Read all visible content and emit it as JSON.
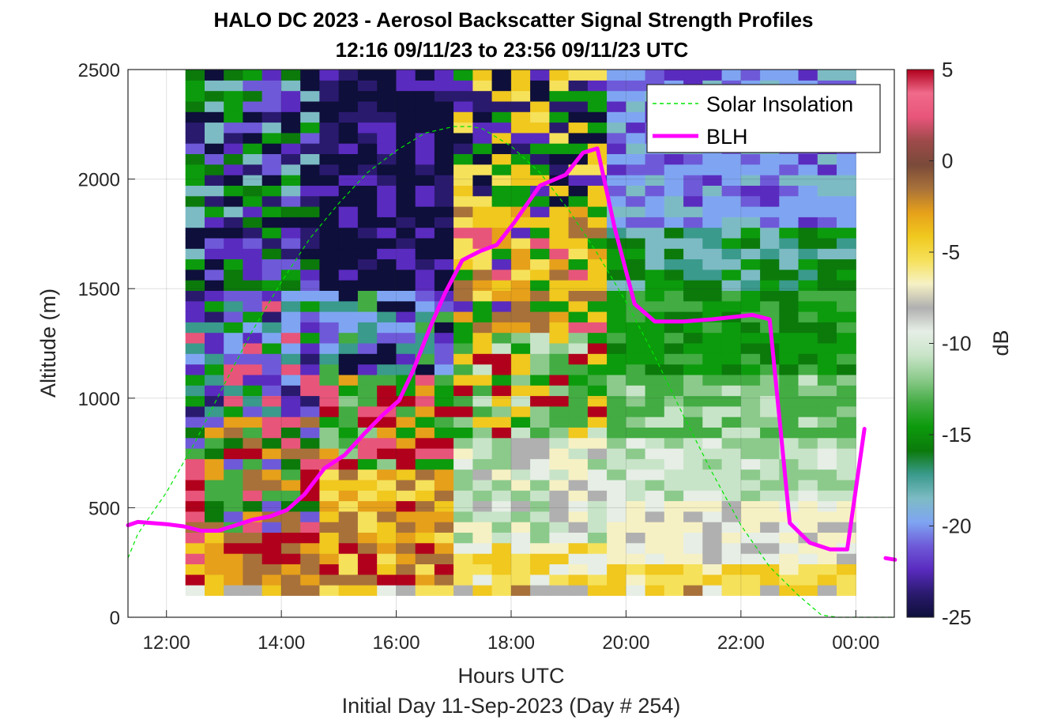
{
  "chart_data": {
    "type": "heatmap",
    "title": "HALO DC 2023 - Aerosol Backscatter Signal Strength Profiles",
    "subtitle": "12:16 09/11/23 to 23:56 09/11/23  UTC",
    "xlabel": "Hours UTC",
    "footer": "Initial Day 11-Sep-2023 (Day # 254)",
    "ylabel": "Altitude (m)",
    "colorbar_label": "dB",
    "x_ticks": [
      "12:00",
      "14:00",
      "16:00",
      "18:00",
      "20:00",
      "22:00",
      "00:00"
    ],
    "x_tick_hours": [
      12,
      14,
      16,
      18,
      20,
      22,
      24
    ],
    "xlim_hours": [
      11.33,
      24.67
    ],
    "y_ticks": [
      "0",
      "500",
      "1000",
      "1500",
      "2000",
      "2500"
    ],
    "ylim": [
      0,
      2500
    ],
    "colorbar_ticks": [
      "5",
      "0",
      "-5",
      "-10",
      "-15",
      "-20",
      "-25"
    ],
    "clim": [
      -25,
      5
    ],
    "colormap": [
      "#0e0f3a",
      "#2a1a6e",
      "#5a2bbf",
      "#6e5ad8",
      "#7fa5f2",
      "#7dbbc4",
      "#3a9a8c",
      "#0b7a0b",
      "#0c9b0c",
      "#43ac43",
      "#8cca8c",
      "#c8e4c8",
      "#e6eee6",
      "#b0b0b0",
      "#f6f1c4",
      "#f6e15a",
      "#f0c81e",
      "#e6a01a",
      "#a8713a",
      "#7a4a3a",
      "#9e4a4a",
      "#e8557a",
      "#f06a8a",
      "#b0001c"
    ],
    "data_bounds": {
      "x_hours": [
        12.33,
        24.0
      ],
      "y_m": [
        100,
        2500
      ]
    },
    "grid": true,
    "legend_position": "top-right",
    "legend": [
      {
        "label": "Solar Insolation",
        "color": "#00e600",
        "style": "dashed"
      },
      {
        "label": "BLH",
        "color": "#ff00ff",
        "style": "solid"
      }
    ],
    "series": [
      {
        "name": "BLH",
        "x_hours": [
          11.33,
          11.5,
          12.0,
          12.3,
          12.6,
          12.9,
          13.2,
          13.5,
          13.8,
          14.1,
          14.4,
          14.75,
          15.1,
          15.45,
          15.75,
          16.05,
          16.3,
          16.6,
          16.85,
          17.15,
          17.45,
          17.75,
          18.05,
          18.5,
          18.95,
          19.25,
          19.5,
          19.8,
          20.15,
          20.5,
          21.0,
          21.5,
          22.2,
          22.5,
          22.85,
          23.2,
          23.55,
          23.85,
          24.15
        ],
        "y_m": [
          420,
          435,
          425,
          415,
          395,
          395,
          420,
          445,
          460,
          490,
          560,
          680,
          740,
          840,
          920,
          990,
          1130,
          1330,
          1480,
          1630,
          1670,
          1700,
          1800,
          1970,
          2020,
          2120,
          2140,
          1780,
          1430,
          1350,
          1350,
          1360,
          1380,
          1360,
          430,
          340,
          310,
          310,
          860
        ],
        "isolated_point": {
          "x_hours": 24.6,
          "y_m": 270
        }
      },
      {
        "name": "Solar Insolation",
        "x_hours": [
          11.33,
          11.5,
          12.0,
          12.5,
          13.0,
          13.5,
          14.0,
          14.5,
          15.0,
          15.5,
          16.0,
          16.5,
          17.0,
          17.3,
          17.5,
          18.0,
          18.5,
          19.0,
          19.5,
          20.0,
          20.5,
          21.0,
          21.5,
          22.0,
          22.5,
          23.0,
          23.4,
          23.7,
          24.67
        ],
        "y_m": [
          270,
          380,
          570,
          800,
          1060,
          1310,
          1530,
          1730,
          1890,
          2030,
          2130,
          2210,
          2240,
          2240,
          2230,
          2150,
          2030,
          1860,
          1660,
          1440,
          1190,
          920,
          660,
          420,
          230,
          100,
          10,
          0,
          0
        ]
      }
    ]
  }
}
